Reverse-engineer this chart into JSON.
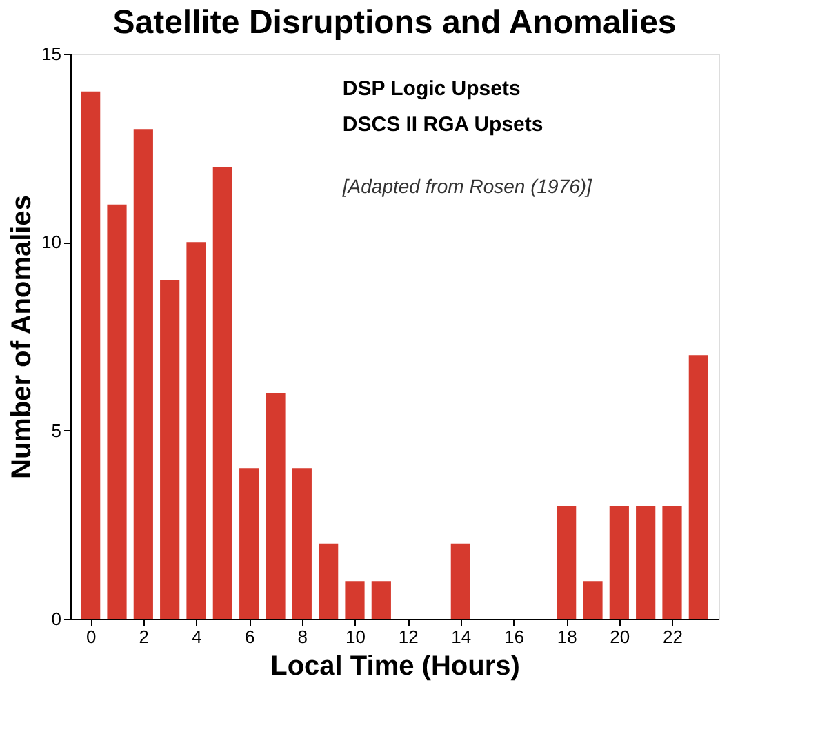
{
  "chart_data": {
    "type": "bar",
    "title": "Satellite Disruptions and Anomalies",
    "xlabel": "Local Time (Hours)",
    "ylabel": "Number of Anomalies",
    "x": [
      0,
      1,
      2,
      3,
      4,
      5,
      6,
      7,
      8,
      9,
      10,
      11,
      12,
      13,
      14,
      15,
      16,
      17,
      18,
      19,
      20,
      21,
      22,
      23
    ],
    "values": [
      14,
      11,
      13,
      9,
      10,
      12,
      4,
      6,
      4,
      2,
      1,
      1,
      0,
      0,
      2,
      0,
      0,
      0,
      3,
      1,
      3,
      3,
      3,
      7
    ],
    "color": "#d63a2e",
    "xlim": [
      -0.5,
      23.5
    ],
    "xticks": [
      0,
      2,
      4,
      6,
      8,
      10,
      12,
      14,
      16,
      18,
      20,
      22
    ],
    "ylim": [
      0,
      15
    ],
    "yticks": [
      0,
      5,
      10,
      15
    ],
    "annotations": [
      "DSP Logic Upsets",
      "DSCS II RGA Upsets",
      "[Adapted from Rosen (1976)]"
    ],
    "grid": false
  }
}
